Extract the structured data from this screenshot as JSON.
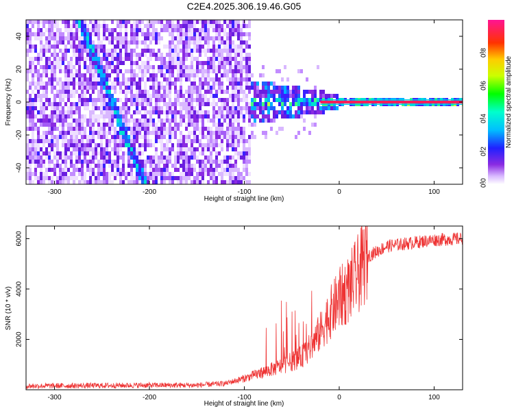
{
  "title": "C2E4.2025.306.19.46.G05",
  "chart_data": [
    {
      "type": "heatmap",
      "xlabel": "Height of straight line (km)",
      "ylabel": "Frequency (Hz)",
      "xlim": [
        -330,
        130
      ],
      "ylim": [
        -50,
        50
      ],
      "xticks": [
        -300,
        -200,
        -100,
        0,
        100
      ],
      "yticks": [
        -40,
        -20,
        0,
        20,
        40
      ],
      "colorbar": {
        "label": "Normalized spectral amplitude",
        "range": [
          0,
          1
        ],
        "ticks": [
          "0.0",
          "0.2",
          "0.4",
          "0.6",
          "0.8"
        ],
        "colormap": "rainbow (white-violet-blue-cyan-green-yellow-red-magenta)"
      },
      "features": {
        "noise_region_x": [
          -330,
          -100
        ],
        "diagonal_track": {
          "x": [
            -270,
            -205
          ],
          "y": [
            45,
            -50
          ]
        },
        "signal_line_y": 0,
        "signal_strong_from_x": -20
      }
    },
    {
      "type": "line",
      "xlabel": "Height of straight line (km)",
      "ylabel": "SNR (10 * v/v)",
      "xlim": [
        -330,
        130
      ],
      "ylim": [
        0,
        6500
      ],
      "xticks": [
        -300,
        -200,
        -100,
        0,
        100
      ],
      "yticks": [
        2000,
        4000,
        6000
      ],
      "color": "#ee3333",
      "profile": {
        "x": [
          -330,
          -200,
          -150,
          -120,
          -100,
          -80,
          -60,
          -40,
          -30,
          -20,
          -10,
          0,
          10,
          20,
          30,
          50,
          70,
          100,
          130
        ],
        "y": [
          150,
          180,
          180,
          250,
          450,
          700,
          950,
          1300,
          1700,
          2300,
          3000,
          3600,
          4000,
          4600,
          5300,
          5700,
          5800,
          5950,
          6000
        ]
      }
    }
  ]
}
